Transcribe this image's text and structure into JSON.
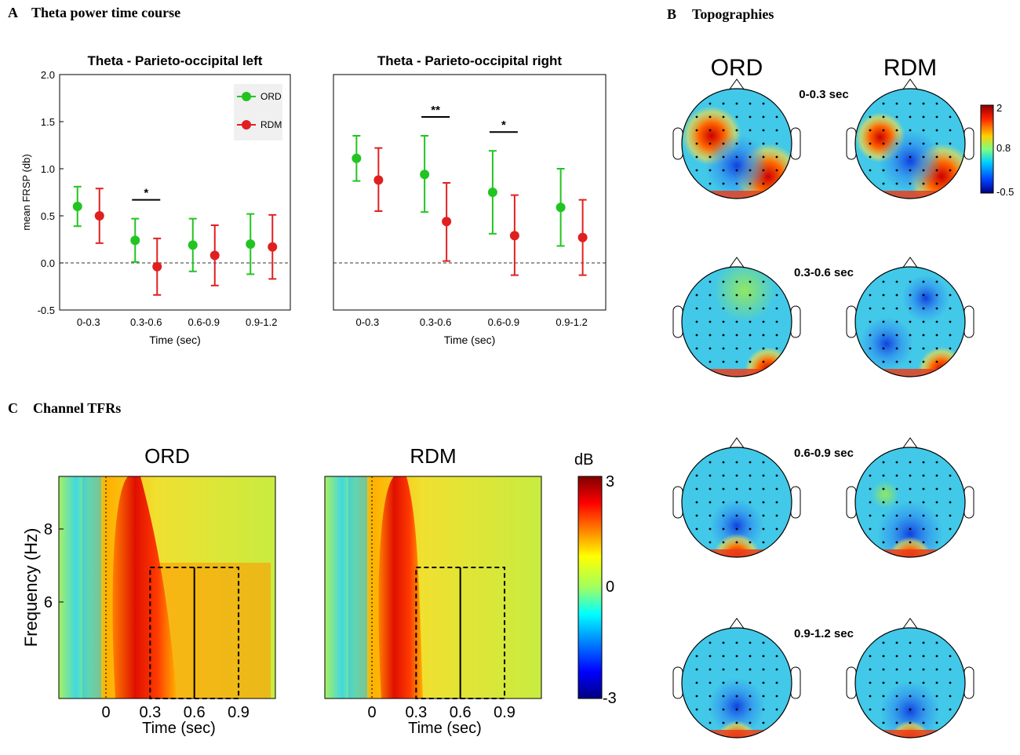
{
  "panels": {
    "A": {
      "letter": "A",
      "title": "Theta power time course"
    },
    "B": {
      "letter": "B",
      "title": "Topographies"
    },
    "C": {
      "letter": "C",
      "title": "Channel TFRs"
    }
  },
  "chart_data": [
    {
      "id": "theta-left",
      "type": "errorbar",
      "title": "Theta - Parieto-occipital left",
      "xlabel": "Time (sec)",
      "ylabel": "mean FRSP (db)",
      "categories": [
        "0-0.3",
        "0.3-0.6",
        "0.6-0.9",
        "0.9-1.2"
      ],
      "ylim": [
        -0.5,
        2.0
      ],
      "yticks": [
        "2.0",
        "1.5",
        "1.0",
        "0.5",
        "0.0",
        "-0.5"
      ],
      "legend": [
        {
          "name": "ORD",
          "color": "#22c422"
        },
        {
          "name": "RDM",
          "color": "#e02020"
        }
      ],
      "series": [
        {
          "name": "ORD",
          "color": "#22c422",
          "values": [
            0.6,
            0.24,
            0.19,
            0.2
          ],
          "lower": [
            0.39,
            0.01,
            -0.09,
            -0.12
          ],
          "upper": [
            0.81,
            0.47,
            0.47,
            0.52
          ]
        },
        {
          "name": "RDM",
          "color": "#e02020",
          "values": [
            0.5,
            -0.04,
            0.08,
            0.17
          ],
          "lower": [
            0.21,
            -0.34,
            -0.24,
            -0.17
          ],
          "upper": [
            0.79,
            0.26,
            0.4,
            0.51
          ]
        }
      ],
      "significance": [
        {
          "category": "0.3-0.6",
          "label": "*"
        }
      ]
    },
    {
      "id": "theta-right",
      "type": "errorbar",
      "title": "Theta - Parieto-occipital right",
      "xlabel": "Time (sec)",
      "ylabel": "",
      "categories": [
        "0-0.3",
        "0.3-0.6",
        "0.6-0.9",
        "0.9-1.2"
      ],
      "ylim": [
        -0.5,
        2.0
      ],
      "series": [
        {
          "name": "ORD",
          "color": "#22c422",
          "values": [
            1.11,
            0.94,
            0.75,
            0.59
          ],
          "lower": [
            0.87,
            0.54,
            0.31,
            0.18
          ],
          "upper": [
            1.35,
            1.35,
            1.19,
            1.0
          ]
        },
        {
          "name": "RDM",
          "color": "#e02020",
          "values": [
            0.88,
            0.44,
            0.29,
            0.27
          ],
          "lower": [
            0.55,
            0.02,
            -0.13,
            -0.13
          ],
          "upper": [
            1.22,
            0.85,
            0.72,
            0.67
          ]
        }
      ],
      "significance": [
        {
          "category": "0.3-0.6",
          "label": "**"
        },
        {
          "category": "0.6-0.9",
          "label": "*"
        }
      ]
    },
    {
      "id": "topographies",
      "type": "heatmap",
      "conditions": [
        "ORD",
        "RDM"
      ],
      "windows": [
        "0-0.3 sec",
        "0.3-0.6 sec",
        "0.6-0.9 sec",
        "0.9-1.2 sec"
      ],
      "colorbar": {
        "max": "2",
        "mid": "0.8",
        "min": "-0.5"
      }
    },
    {
      "id": "channel-tfrs",
      "type": "heatmap",
      "conditions": [
        "ORD",
        "RDM"
      ],
      "xlabel": "Time (sec)",
      "ylabel": "Frequency (Hz)",
      "xticks": [
        "0",
        "0.3",
        "0.6",
        "0.9"
      ],
      "yticks": [
        "8",
        "6"
      ],
      "colorbar": {
        "label": "dB",
        "max": "3",
        "mid": "0",
        "min": "-3"
      }
    }
  ]
}
